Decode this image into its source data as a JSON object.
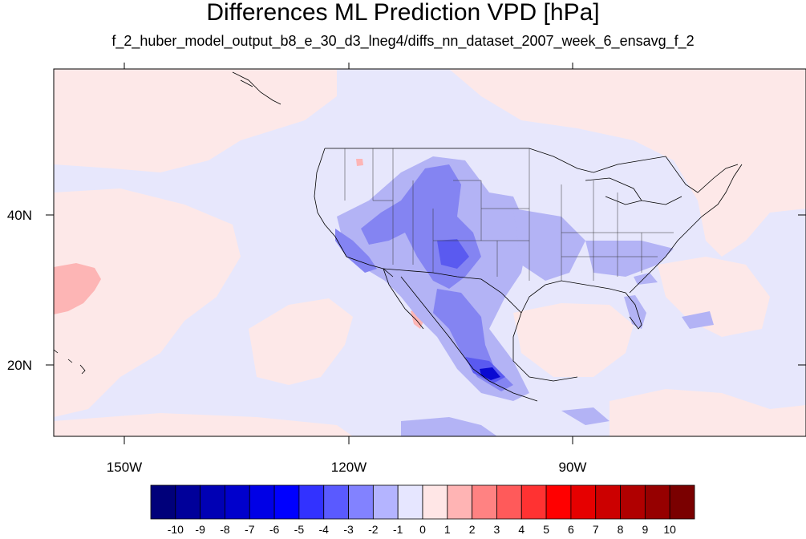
{
  "title": "Differences ML Prediction VPD [hPa]",
  "subtitle": "f_2_huber_model_output_b8_e_30_d3_lneg4/diffs_nn_dataset_2007_week_6_ensavg_f_2",
  "axes": {
    "lon_labels": [
      "150W",
      "120W",
      "90W"
    ],
    "lat_labels": [
      "40N",
      "20N"
    ],
    "lon_range": [
      -160,
      -62
    ],
    "lat_range": [
      10.5,
      58.5
    ]
  },
  "colorbar": {
    "labels": [
      "-10",
      "-9",
      "-8",
      "-7",
      "-6",
      "-5",
      "-4",
      "-3",
      "-2",
      "-1",
      "0",
      "1",
      "2",
      "3",
      "4",
      "5",
      "6",
      "7",
      "8",
      "9",
      "10"
    ],
    "colors": [
      "#00007a",
      "#00009a",
      "#0000b4",
      "#0000cc",
      "#0000e6",
      "#0000ff",
      "#3232ff",
      "#5a5aff",
      "#8282ff",
      "#b4b4ff",
      "#e6e6ff",
      "#ffe6e6",
      "#ffb4b4",
      "#ff8282",
      "#ff5a5a",
      "#ff3232",
      "#ff0000",
      "#e60000",
      "#cc0000",
      "#b00000",
      "#960000",
      "#7a0000"
    ]
  },
  "colors": {
    "background_field": "#e7e7fc",
    "positive_light": "#fde8e8",
    "positive_mid": "#fdb5b5",
    "negative_mid": "#b3b3f5",
    "negative_strong": "#8484f2",
    "negative_deep": "#5a5af0",
    "negative_max": "#0a0ad2"
  }
}
